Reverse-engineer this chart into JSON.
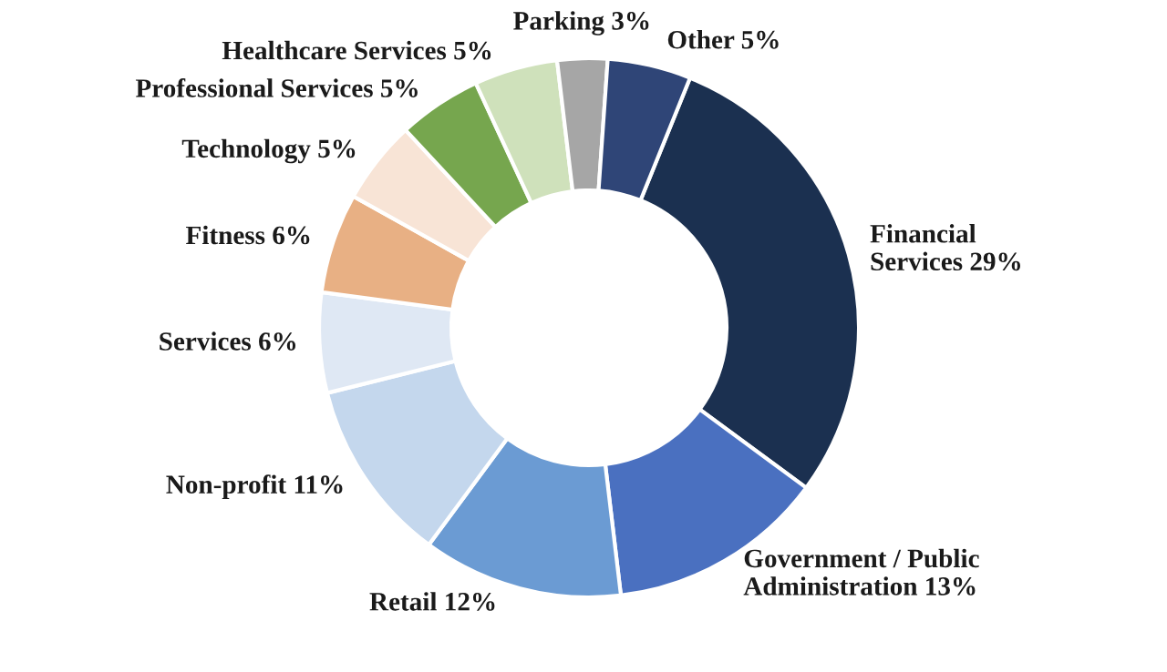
{
  "chart_data": {
    "type": "donut",
    "categories": [
      "Financial\nServices",
      "Government / Public\nAdministration",
      "Retail",
      "Non-profit",
      "Services",
      "Fitness",
      "Technology",
      "Professional Services",
      "Healthcare Services",
      "Parking",
      "Other"
    ],
    "values": [
      29,
      13,
      12,
      11,
      6,
      6,
      5,
      5,
      5,
      3,
      5
    ],
    "value_labels": [
      "29%",
      "13%",
      "12%",
      "11%",
      "6%",
      "6%",
      "5%",
      "5%",
      "5%",
      "3%",
      "5%"
    ],
    "colors": [
      "#1b3050",
      "#4a70c0",
      "#6b9bd3",
      "#c4d7ed",
      "#dfe8f4",
      "#e8b084",
      "#f8e4d6",
      "#76a64e",
      "#cfe1bb",
      "#a6a6a6",
      "#2f4577"
    ],
    "legend": false
  }
}
